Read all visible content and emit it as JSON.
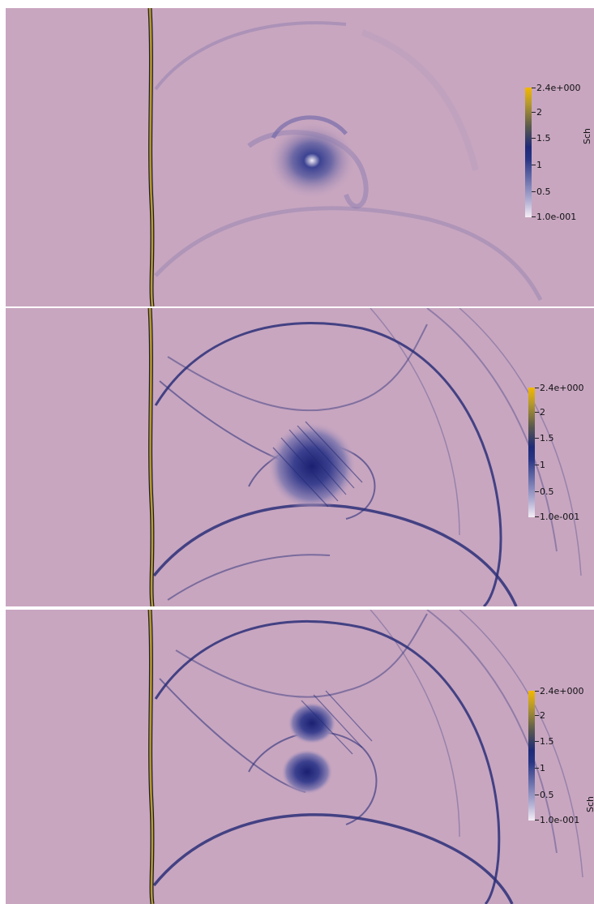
{
  "panels": [
    {
      "colorbar": {
        "ticks": [
          "2.4e+000",
          "2",
          "1.5",
          "1",
          "0.5",
          "1.0e-001"
        ],
        "title": "Sch"
      }
    },
    {
      "colorbar": {
        "ticks": [
          "2.4e+000",
          "2",
          "1.5",
          "1",
          "0.5",
          "1.0e-001"
        ],
        "title": ""
      }
    },
    {
      "colorbar": {
        "ticks": [
          "2.4e+000",
          "2",
          "1.5",
          "1",
          "0.5",
          "1.0e-001"
        ],
        "title": "Sch"
      }
    }
  ],
  "colors": {
    "background": "#c8a6c0",
    "wave": "#2b2f78",
    "interface": "#b89a2a"
  }
}
